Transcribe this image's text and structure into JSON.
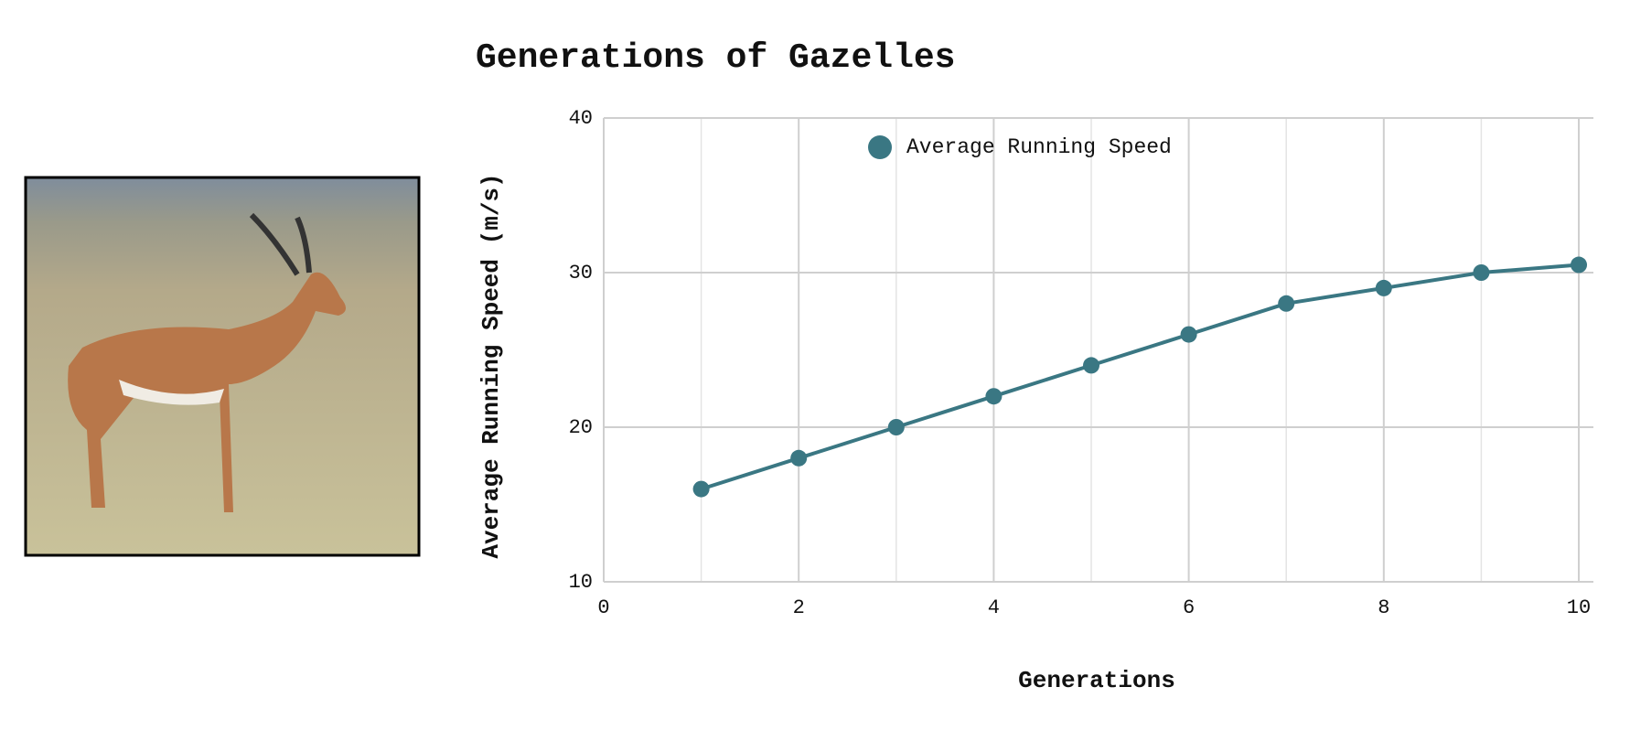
{
  "chart_data": {
    "type": "line",
    "title": "Generations of Gazelles",
    "x_label": "Generations",
    "y_label": "Average Running Speed (m/s)",
    "x": [
      1,
      2,
      3,
      4,
      5,
      6,
      7,
      8,
      9,
      10
    ],
    "series": [
      {
        "name": "Average Running Speed",
        "color": "#3a7783",
        "values": [
          16,
          18,
          20,
          22,
          24,
          26,
          28,
          29,
          30,
          30.5
        ]
      }
    ],
    "xlim": [
      0,
      10.15
    ],
    "xticks": [
      0,
      2,
      4,
      6,
      8,
      10
    ],
    "xminorticks": [
      1,
      3,
      5,
      7,
      9
    ],
    "ylim": [
      10,
      40
    ],
    "yticks": [
      10,
      20,
      30,
      40
    ],
    "grid": true,
    "legend": "top"
  }
}
